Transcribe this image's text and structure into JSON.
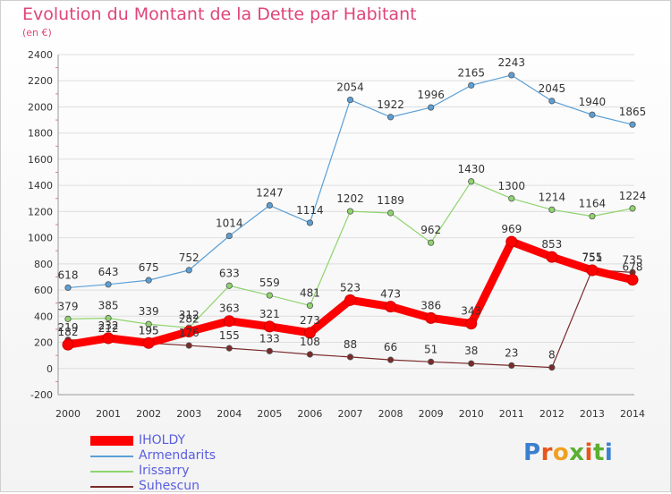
{
  "title": "Evolution du Montant de la Dette par Habitant",
  "subtitle": "(en €)",
  "logo": "Proxiti",
  "chart_data": {
    "type": "line",
    "title": "Evolution du Montant de la Dette par Habitant",
    "subtitle": "(en €)",
    "x": [
      "2000",
      "2001",
      "2002",
      "2003",
      "2004",
      "2005",
      "2006",
      "2007",
      "2008",
      "2009",
      "2010",
      "2011",
      "2012",
      "2013",
      "2014"
    ],
    "ylim": [
      -200,
      2400
    ],
    "yticks": [
      -200,
      0,
      200,
      400,
      600,
      800,
      1000,
      1200,
      1400,
      1600,
      1800,
      2000,
      2200,
      2400
    ],
    "grid": true,
    "legend_position": "bottom-left",
    "series": [
      {
        "name": "IHOLDY",
        "color": "#ff0000",
        "values": [
          182,
          232,
          195,
          282,
          363,
          321,
          273,
          523,
          473,
          386,
          343,
          969,
          853,
          751,
          678
        ]
      },
      {
        "name": "Armendarits",
        "color": "#5b9fd6",
        "values": [
          618,
          643,
          675,
          752,
          1014,
          1247,
          1114,
          2054,
          1922,
          1996,
          2165,
          2243,
          2045,
          1940,
          1865
        ]
      },
      {
        "name": "Irissarry",
        "color": "#8fd46e",
        "values": [
          379,
          385,
          339,
          312,
          633,
          559,
          481,
          1202,
          1189,
          962,
          1430,
          1300,
          1214,
          1164,
          1224
        ]
      },
      {
        "name": "Suhescun",
        "color": "#7a2a2a",
        "values": [
          219,
          212,
          195,
          176,
          155,
          133,
          108,
          88,
          66,
          51,
          38,
          23,
          8,
          755,
          735
        ]
      }
    ]
  }
}
